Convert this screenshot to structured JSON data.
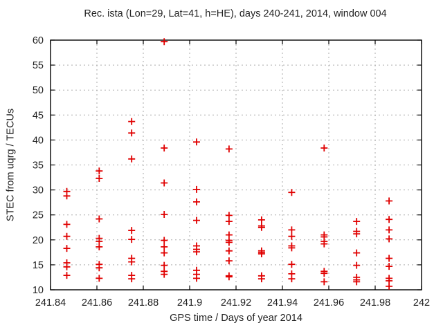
{
  "figure": {
    "kind": "gnuplot-style scatter screenshot"
  },
  "colors": {
    "background": "#ffffff",
    "marker": "#e00000",
    "grid": "#aaaaaa",
    "frame": "#000000",
    "text": "#222222"
  },
  "chart_data": {
    "type": "scatter",
    "title": "Rec. ista (Lon=29, Lat=41, h=HE), days 240-241, 2014, window 004",
    "xlabel": "GPS time / Days of year 2014",
    "ylabel": "STEC from uqrg / TECUs",
    "legend": "none",
    "grid": true,
    "marker": "plus",
    "marker_color": "#e00000",
    "xlim": [
      241.84,
      242
    ],
    "ylim": [
      10,
      60
    ],
    "xticks": [
      241.84,
      241.86,
      241.88,
      241.9,
      241.92,
      241.94,
      241.96,
      241.98,
      242
    ],
    "xtick_labels": [
      "241.84",
      "241.86",
      "241.88",
      "241.9",
      "241.92",
      "241.94",
      "241.96",
      "241.98",
      "242"
    ],
    "yticks": [
      10,
      15,
      20,
      25,
      30,
      35,
      40,
      45,
      50,
      55,
      60
    ],
    "ytick_labels": [
      "10",
      "15",
      "20",
      "25",
      "30",
      "35",
      "40",
      "45",
      "50",
      "55",
      "60"
    ],
    "points": [
      [
        241.847,
        29.7
      ],
      [
        241.847,
        28.8
      ],
      [
        241.847,
        23.1
      ],
      [
        241.847,
        20.7
      ],
      [
        241.847,
        18.3
      ],
      [
        241.847,
        15.4
      ],
      [
        241.847,
        14.6
      ],
      [
        241.847,
        12.9
      ],
      [
        241.861,
        33.8
      ],
      [
        241.861,
        32.3
      ],
      [
        241.861,
        24.2
      ],
      [
        241.861,
        20.3
      ],
      [
        241.861,
        19.7
      ],
      [
        241.861,
        18.6
      ],
      [
        241.861,
        15.1
      ],
      [
        241.861,
        14.4
      ],
      [
        241.861,
        12.3
      ],
      [
        241.875,
        43.7
      ],
      [
        241.875,
        41.4
      ],
      [
        241.875,
        36.2
      ],
      [
        241.875,
        21.9
      ],
      [
        241.875,
        20.1
      ],
      [
        241.875,
        16.3
      ],
      [
        241.875,
        15.6
      ],
      [
        241.875,
        12.9
      ],
      [
        241.875,
        12.2
      ],
      [
        241.889,
        59.7
      ],
      [
        241.889,
        38.4
      ],
      [
        241.889,
        31.4
      ],
      [
        241.889,
        25.1
      ],
      [
        241.889,
        19.9
      ],
      [
        241.889,
        18.6
      ],
      [
        241.889,
        17.4
      ],
      [
        241.889,
        14.9
      ],
      [
        241.889,
        13.7
      ],
      [
        241.889,
        13.1
      ],
      [
        241.903,
        39.6
      ],
      [
        241.903,
        30.1
      ],
      [
        241.903,
        27.6
      ],
      [
        241.903,
        23.9
      ],
      [
        241.903,
        18.8
      ],
      [
        241.903,
        18.1
      ],
      [
        241.903,
        17.6
      ],
      [
        241.903,
        13.9
      ],
      [
        241.903,
        13.1
      ],
      [
        241.903,
        12.3
      ],
      [
        241.917,
        38.2
      ],
      [
        241.917,
        24.9
      ],
      [
        241.917,
        23.7
      ],
      [
        241.917,
        21.0
      ],
      [
        241.917,
        19.9
      ],
      [
        241.917,
        19.5
      ],
      [
        241.917,
        17.8
      ],
      [
        241.917,
        15.8
      ],
      [
        241.917,
        12.8
      ],
      [
        241.917,
        12.6
      ],
      [
        241.931,
        24.0
      ],
      [
        241.931,
        22.8
      ],
      [
        241.931,
        22.5
      ],
      [
        241.931,
        17.8
      ],
      [
        241.931,
        17.5
      ],
      [
        241.931,
        17.2
      ],
      [
        241.931,
        12.8
      ],
      [
        241.931,
        12.2
      ],
      [
        241.944,
        29.5
      ],
      [
        241.944,
        22.0
      ],
      [
        241.944,
        20.7
      ],
      [
        241.944,
        18.8
      ],
      [
        241.944,
        18.4
      ],
      [
        241.944,
        15.1
      ],
      [
        241.944,
        13.2
      ],
      [
        241.944,
        12.2
      ],
      [
        241.958,
        38.4
      ],
      [
        241.958,
        21.0
      ],
      [
        241.958,
        20.6
      ],
      [
        241.958,
        19.7
      ],
      [
        241.958,
        19.2
      ],
      [
        241.958,
        13.7
      ],
      [
        241.958,
        13.3
      ],
      [
        241.958,
        11.6
      ],
      [
        241.972,
        23.7
      ],
      [
        241.972,
        21.7
      ],
      [
        241.972,
        21.2
      ],
      [
        241.972,
        17.4
      ],
      [
        241.972,
        14.9
      ],
      [
        241.972,
        12.5
      ],
      [
        241.972,
        12.0
      ],
      [
        241.972,
        11.6
      ],
      [
        241.986,
        27.8
      ],
      [
        241.986,
        24.1
      ],
      [
        241.986,
        22.0
      ],
      [
        241.986,
        20.2
      ],
      [
        241.986,
        16.3
      ],
      [
        241.986,
        14.7
      ],
      [
        241.986,
        12.3
      ],
      [
        241.986,
        11.8
      ],
      [
        241.986,
        10.7
      ]
    ]
  }
}
